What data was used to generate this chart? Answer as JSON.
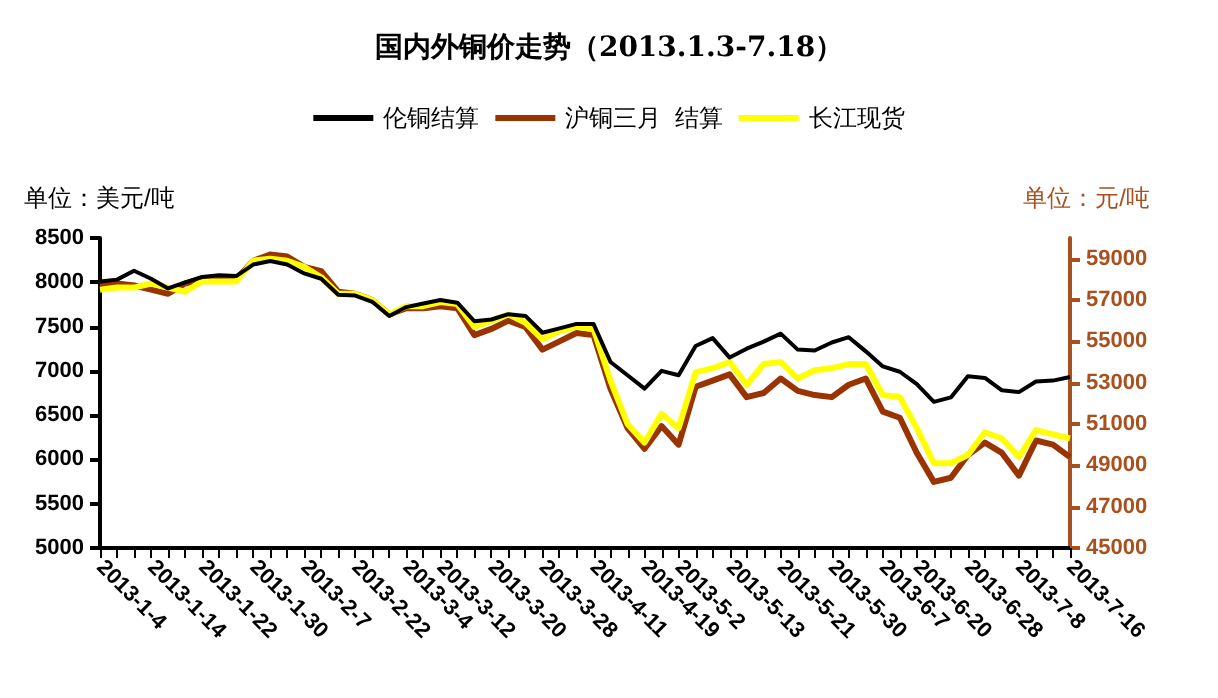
{
  "chart_data": {
    "type": "line",
    "title": "国内外铜价走势（2013.1.3-7.18）",
    "ylabel": "单位：美元/吨",
    "y2label": "单位：元/吨",
    "categories": [
      "2013-1-4",
      null,
      null,
      "2013-1-14",
      null,
      null,
      "2013-1-22",
      null,
      null,
      "2013-1-30",
      null,
      null,
      "2013-2-7",
      null,
      null,
      "2013-2-22",
      null,
      null,
      "2013-3-4",
      null,
      "2013-3-12",
      null,
      null,
      "2013-3-20",
      null,
      null,
      "2013-3-28",
      null,
      null,
      "2013-4-11",
      null,
      null,
      "2013-4-19",
      null,
      "2013-5-2",
      null,
      null,
      "2013-5-13",
      null,
      null,
      "2013-5-21",
      null,
      null,
      "2013-5-30",
      null,
      null,
      "2013-6-7",
      null,
      "2013-6-20",
      null,
      null,
      "2013-6-28",
      null,
      null,
      "2013-7-8",
      null,
      null,
      "2013-7-16"
    ],
    "series": [
      {
        "name": "伦铜结算",
        "color": "#000000",
        "values": [
          8010,
          8030,
          8130,
          8040,
          7930,
          8000,
          8060,
          8080,
          8070,
          8200,
          8240,
          8200,
          8100,
          8040,
          7860,
          7850,
          7780,
          7620,
          7720,
          7760,
          7800,
          7770,
          7560,
          7580,
          7640,
          7620,
          7430,
          7480,
          7530,
          7530,
          7100,
          6950,
          6800,
          7000,
          6950,
          7280,
          7370,
          7150,
          7250,
          7330,
          7420,
          7240,
          7230,
          7320,
          7380,
          7220,
          7050,
          6990,
          6850,
          6650,
          6700,
          6940,
          6920,
          6780,
          6760,
          6880,
          6890,
          6930
        ]
      },
      {
        "name": "沪铜三月  结算",
        "color": "#993300",
        "axis": "y2",
        "values": [
          57700,
          57800,
          57700,
          57500,
          57300,
          57800,
          58000,
          58100,
          58000,
          58900,
          59200,
          59100,
          58600,
          58400,
          57400,
          57300,
          57000,
          56300,
          56600,
          56600,
          56700,
          56600,
          55300,
          55600,
          56000,
          55700,
          54600,
          55000,
          55400,
          55300,
          52700,
          50800,
          49800,
          50900,
          50000,
          52800,
          53100,
          53400,
          52300,
          52500,
          53200,
          52600,
          52400,
          52300,
          52900,
          53200,
          51600,
          51300,
          49600,
          48200,
          48400,
          49500,
          50100,
          49600,
          48500,
          50200,
          50000,
          49400
        ]
      },
      {
        "name": "长江现货",
        "color": "#ffff00",
        "axis": "y2",
        "values": [
          57500,
          57600,
          57600,
          57800,
          57600,
          57400,
          57900,
          57900,
          57900,
          58900,
          59000,
          58900,
          58600,
          58100,
          57300,
          57300,
          57000,
          56300,
          56700,
          56700,
          56900,
          56800,
          55700,
          56000,
          56300,
          55900,
          55100,
          55500,
          55700,
          55600,
          53100,
          51000,
          50100,
          51500,
          50800,
          53500,
          53700,
          54000,
          52900,
          53900,
          54000,
          53200,
          53600,
          53700,
          53900,
          53900,
          52400,
          52300,
          50800,
          49100,
          49100,
          49500,
          50600,
          50300,
          49400,
          50700,
          50500,
          50300
        ]
      }
    ],
    "ylim": [
      5000,
      8500
    ],
    "yticks": [
      5000,
      5500,
      6000,
      6500,
      7000,
      7500,
      8000,
      8500
    ],
    "y2lim": [
      45000,
      60000
    ],
    "y2ticks": [
      45000,
      47000,
      49000,
      51000,
      53000,
      55000,
      57000,
      59000
    ],
    "legend": "top",
    "grid": false,
    "marker": "none",
    "line_style": "solid"
  }
}
